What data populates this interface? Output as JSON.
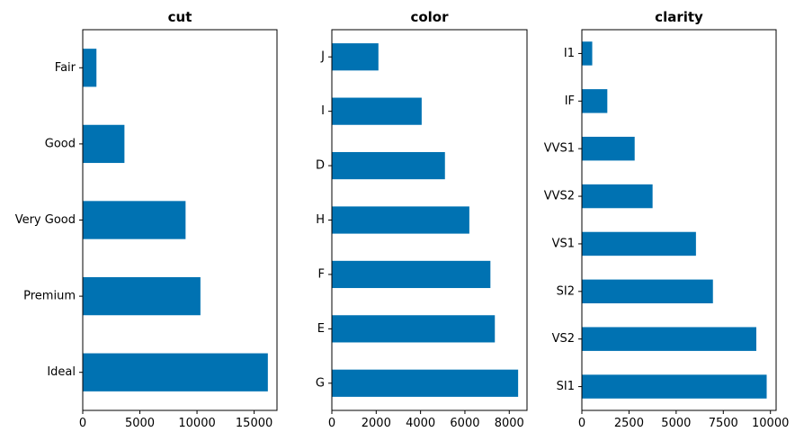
{
  "chart_data": [
    {
      "type": "bar",
      "orientation": "horizontal",
      "title": "cut",
      "categories": [
        "Ideal",
        "Premium",
        "Very Good",
        "Good",
        "Fair"
      ],
      "values": [
        16200,
        10300,
        9000,
        3650,
        1200
      ],
      "xlim": [
        0,
        17000
      ],
      "xticks": [
        0,
        5000,
        10000,
        15000
      ],
      "xtick_labels": [
        "0",
        "5000",
        "10000",
        "15000"
      ],
      "color": "#0072b2",
      "grid": false,
      "legend": false
    },
    {
      "type": "bar",
      "orientation": "horizontal",
      "title": "color",
      "categories": [
        "G",
        "E",
        "F",
        "H",
        "D",
        "I",
        "J"
      ],
      "values": [
        8400,
        7350,
        7150,
        6200,
        5100,
        4050,
        2100
      ],
      "xlim": [
        0,
        8800
      ],
      "xticks": [
        0,
        2000,
        4000,
        6000,
        8000
      ],
      "xtick_labels": [
        "0",
        "2000",
        "4000",
        "6000",
        "8000"
      ],
      "color": "#0072b2",
      "grid": false,
      "legend": false
    },
    {
      "type": "bar",
      "orientation": "horizontal",
      "title": "clarity",
      "categories": [
        "SI1",
        "VS2",
        "SI2",
        "VS1",
        "VVS2",
        "VVS1",
        "IF",
        "I1"
      ],
      "values": [
        9800,
        9250,
        6950,
        6050,
        3750,
        2800,
        1350,
        550
      ],
      "xlim": [
        0,
        10300
      ],
      "xticks": [
        0,
        2500,
        5000,
        7500,
        10000
      ],
      "xtick_labels": [
        "0",
        "2500",
        "5000",
        "7500",
        "10000"
      ],
      "color": "#0072b2",
      "grid": false,
      "legend": false
    }
  ]
}
